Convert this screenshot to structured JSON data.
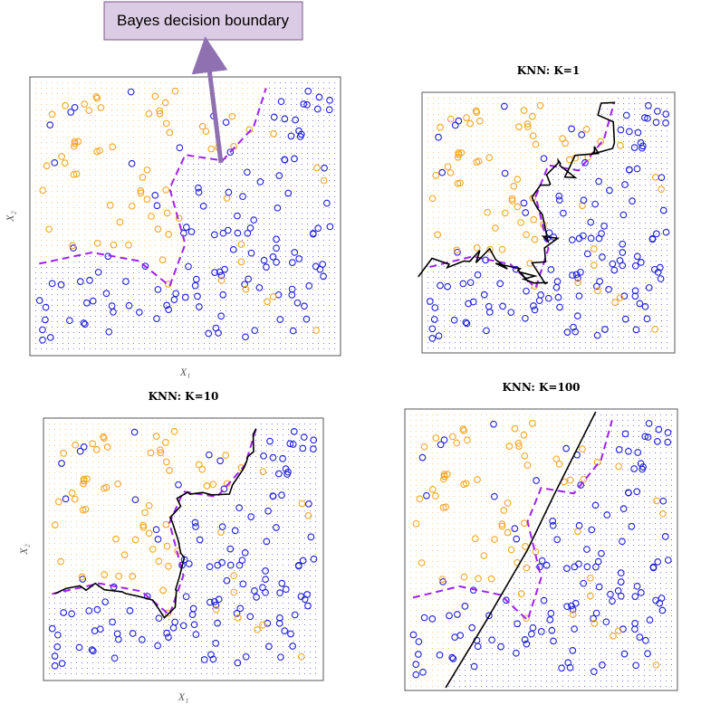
{
  "annotation": "Bayes decision boundary",
  "panels": [
    {
      "x_label": "X₁",
      "y_label": "X₂"
    },
    {
      "title": "KNN: K=1"
    },
    {
      "title": "KNN: K=10",
      "x_label": "X₁",
      "y_label": "X₂"
    },
    {
      "title": "KNN: K=100"
    }
  ]
}
